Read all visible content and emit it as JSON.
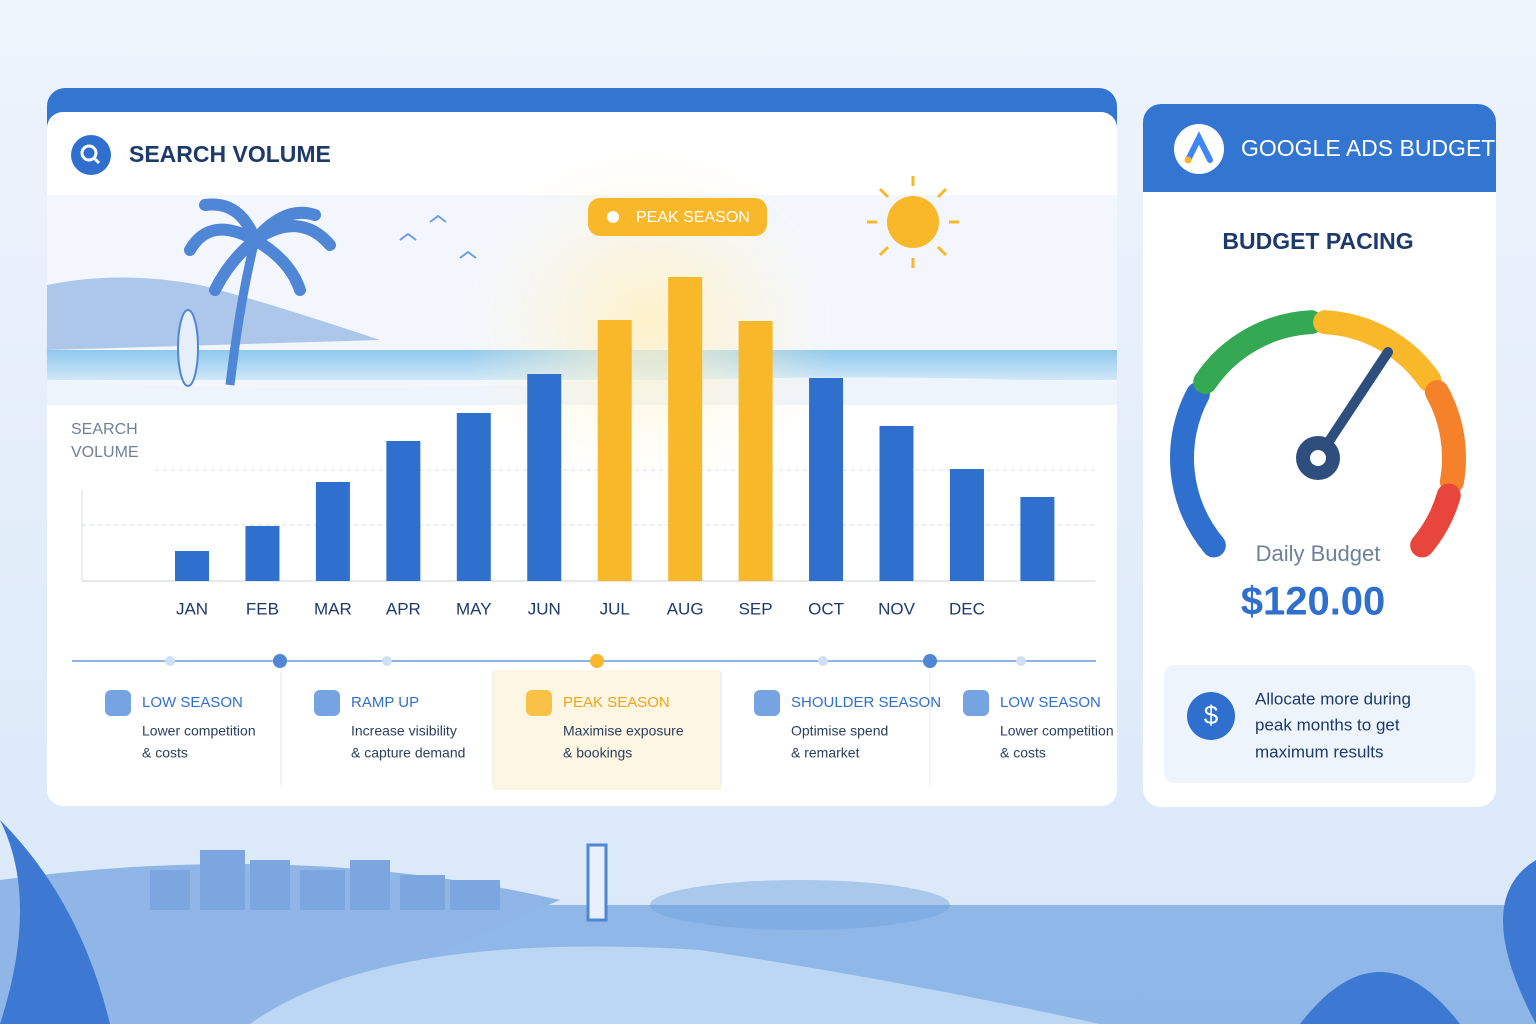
{
  "chart_data": {
    "type": "bar",
    "title": "SEARCH VOLUME",
    "y_label": [
      "SEARCH",
      "VOLUME"
    ],
    "annotation": "PEAK SEASON",
    "categories": [
      "JAN",
      "FEB",
      "MAR",
      "APR",
      "MAY",
      "JUN",
      "JUL",
      "AUG",
      "SEP",
      "OCT",
      "NOV",
      "DEC",
      null
    ],
    "values": [
      30,
      55,
      99,
      140,
      168,
      207,
      261,
      304,
      260,
      203,
      155,
      112,
      84
    ],
    "colors": [
      "#2f6fce",
      "#2f6fce",
      "#2f6fce",
      "#2f6fce",
      "#2f6fce",
      "#2f6fce",
      "#f8b82a",
      "#f8b82a",
      "#f8b82a",
      "#2f6fce",
      "#2f6fce",
      "#2f6fce",
      "#2f6fce"
    ]
  },
  "seasons": [
    {
      "title": "LOW SEASON",
      "lines": [
        "Lower competition",
        "& costs"
      ]
    },
    {
      "title": "RAMP UP",
      "lines": [
        "Increase visibility",
        "& capture demand"
      ]
    },
    {
      "title": "PEAK SEASON",
      "lines": [
        "Maximise exposure",
        "& bookings"
      ]
    },
    {
      "title": "SHOULDER SEASON",
      "lines": [
        "Optimise spend",
        "& remarket"
      ]
    },
    {
      "title": "LOW SEASON",
      "lines": [
        "Lower competition",
        "& costs"
      ]
    }
  ],
  "budget_panel": {
    "title": "GOOGLE ADS BUDGET",
    "subtitle": "BUDGET PACING",
    "label": "Daily Budget",
    "amount": "$120.00",
    "icon": "$",
    "note": [
      "Allocate more during",
      "peak months to get",
      "maximum results"
    ]
  }
}
